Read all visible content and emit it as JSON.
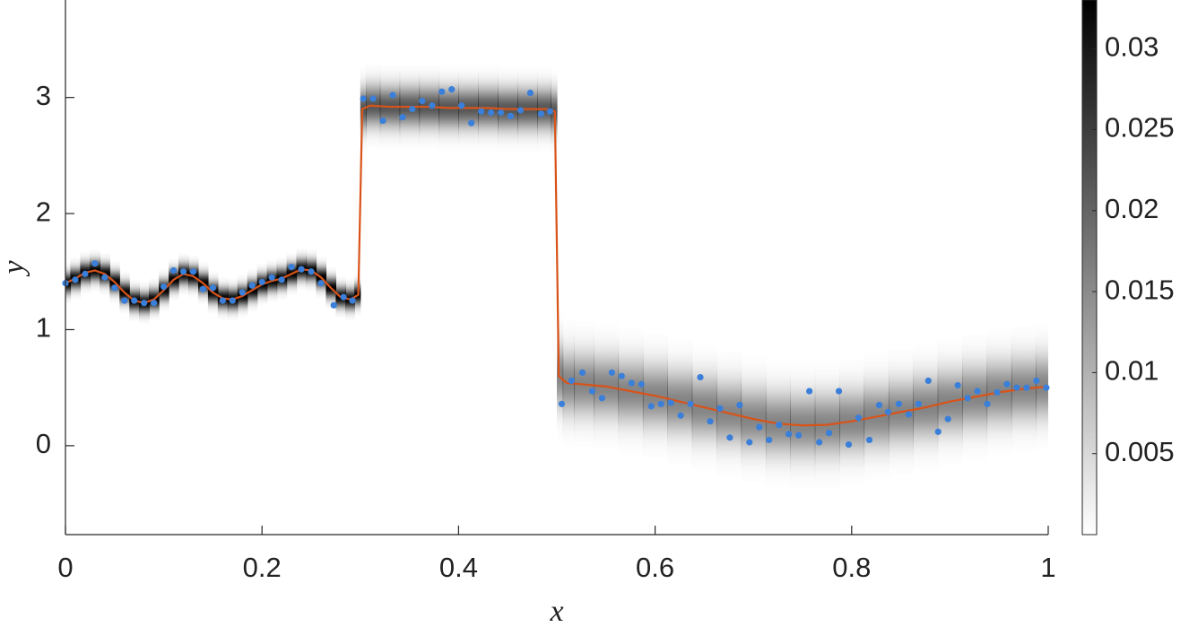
{
  "chart_data": {
    "type": "density",
    "xlabel": "x",
    "ylabel": "y",
    "xlim": [
      0,
      1
    ],
    "ylim": [
      -0.766,
      3.84
    ],
    "xticks": [
      0,
      0.2,
      0.4,
      0.6,
      0.8,
      1
    ],
    "yticks": [
      0,
      1,
      2,
      3
    ],
    "clim": [
      0,
      0.033
    ],
    "cticks": [
      0.005,
      0.01,
      0.015,
      0.02,
      0.025,
      0.03
    ],
    "line": {
      "color": "#d95319",
      "x": [
        0,
        0.01,
        0.02,
        0.03,
        0.04,
        0.05,
        0.06,
        0.07,
        0.08,
        0.09,
        0.1,
        0.11,
        0.12,
        0.13,
        0.14,
        0.15,
        0.16,
        0.17,
        0.18,
        0.19,
        0.2,
        0.21,
        0.22,
        0.23,
        0.24,
        0.25,
        0.26,
        0.27,
        0.28,
        0.29,
        0.298,
        0.302,
        0.31,
        0.33,
        0.35,
        0.37,
        0.39,
        0.41,
        0.43,
        0.45,
        0.47,
        0.49,
        0.498,
        0.502,
        0.51,
        0.525,
        0.55,
        0.575,
        0.6,
        0.625,
        0.65,
        0.675,
        0.7,
        0.725,
        0.75,
        0.775,
        0.8,
        0.825,
        0.85,
        0.875,
        0.9,
        0.925,
        0.95,
        0.975,
        1
      ],
      "y": [
        1.4,
        1.44,
        1.49,
        1.51,
        1.48,
        1.41,
        1.32,
        1.25,
        1.23,
        1.26,
        1.34,
        1.43,
        1.48,
        1.46,
        1.4,
        1.32,
        1.27,
        1.26,
        1.29,
        1.34,
        1.39,
        1.42,
        1.44,
        1.48,
        1.52,
        1.51,
        1.45,
        1.36,
        1.28,
        1.26,
        1.3,
        2.9,
        2.93,
        2.92,
        2.92,
        2.92,
        2.91,
        2.91,
        2.91,
        2.9,
        2.9,
        2.9,
        2.88,
        0.6,
        0.54,
        0.53,
        0.51,
        0.47,
        0.43,
        0.38,
        0.33,
        0.28,
        0.23,
        0.19,
        0.175,
        0.18,
        0.21,
        0.25,
        0.29,
        0.33,
        0.38,
        0.42,
        0.46,
        0.49,
        0.51
      ]
    },
    "density": {
      "peak": [
        0.033,
        0.033,
        0.033,
        0.033,
        0.033,
        0.033,
        0.033,
        0.033,
        0.033,
        0.033,
        0.033,
        0.033,
        0.033,
        0.033,
        0.033,
        0.033,
        0.033,
        0.033,
        0.033,
        0.033,
        0.033,
        0.033,
        0.033,
        0.033,
        0.033,
        0.033,
        0.033,
        0.033,
        0.033,
        0.033,
        0.033,
        0.022,
        0.022,
        0.022,
        0.022,
        0.022,
        0.022,
        0.022,
        0.022,
        0.022,
        0.022,
        0.022,
        0.022,
        0.016,
        0.016,
        0.016,
        0.016,
        0.016,
        0.016,
        0.016,
        0.016,
        0.016,
        0.016,
        0.016,
        0.016,
        0.016,
        0.016,
        0.016,
        0.016,
        0.016,
        0.016,
        0.016,
        0.016,
        0.016,
        0.016
      ],
      "spread": [
        0.06,
        0.06,
        0.06,
        0.06,
        0.06,
        0.06,
        0.06,
        0.06,
        0.06,
        0.06,
        0.06,
        0.06,
        0.06,
        0.06,
        0.06,
        0.06,
        0.06,
        0.06,
        0.06,
        0.06,
        0.06,
        0.06,
        0.06,
        0.06,
        0.06,
        0.06,
        0.06,
        0.06,
        0.06,
        0.06,
        0.06,
        0.12,
        0.12,
        0.12,
        0.12,
        0.12,
        0.12,
        0.12,
        0.12,
        0.12,
        0.12,
        0.12,
        0.12,
        0.18,
        0.18,
        0.18,
        0.18,
        0.18,
        0.18,
        0.18,
        0.18,
        0.18,
        0.18,
        0.18,
        0.18,
        0.18,
        0.18,
        0.18,
        0.18,
        0.18,
        0.18,
        0.18,
        0.18,
        0.18,
        0.18
      ]
    },
    "points": {
      "color": "#3a7fd9",
      "x": [
        0,
        0.01,
        0.02,
        0.03,
        0.04,
        0.05,
        0.06,
        0.07,
        0.08,
        0.09,
        0.1,
        0.11,
        0.12,
        0.13,
        0.14,
        0.15,
        0.16,
        0.17,
        0.18,
        0.19,
        0.2,
        0.21,
        0.22,
        0.23,
        0.24,
        0.25,
        0.26,
        0.273,
        0.283,
        0.292,
        0.303,
        0.313,
        0.323,
        0.333,
        0.343,
        0.353,
        0.363,
        0.373,
        0.383,
        0.393,
        0.403,
        0.413,
        0.423,
        0.433,
        0.443,
        0.453,
        0.463,
        0.473,
        0.484,
        0.493,
        0.505,
        0.515,
        0.526,
        0.536,
        0.546,
        0.556,
        0.566,
        0.576,
        0.586,
        0.596,
        0.606,
        0.616,
        0.626,
        0.636,
        0.646,
        0.656,
        0.666,
        0.676,
        0.686,
        0.696,
        0.706,
        0.716,
        0.726,
        0.736,
        0.746,
        0.757,
        0.767,
        0.777,
        0.787,
        0.797,
        0.807,
        0.818,
        0.828,
        0.837,
        0.848,
        0.858,
        0.868,
        0.878,
        0.888,
        0.898,
        0.908,
        0.918,
        0.928,
        0.938,
        0.948,
        0.958,
        0.968,
        0.978,
        0.988,
        0.998
      ],
      "y": [
        1.4,
        1.43,
        1.48,
        1.57,
        1.45,
        1.36,
        1.25,
        1.25,
        1.23,
        1.23,
        1.37,
        1.51,
        1.5,
        1.5,
        1.35,
        1.36,
        1.25,
        1.25,
        1.32,
        1.38,
        1.41,
        1.45,
        1.43,
        1.54,
        1.52,
        1.5,
        1.4,
        1.21,
        1.28,
        1.25,
        2.99,
        2.99,
        2.8,
        3.02,
        2.83,
        2.9,
        2.97,
        2.93,
        3.05,
        3.07,
        2.93,
        2.78,
        2.88,
        2.87,
        2.87,
        2.84,
        2.89,
        3.04,
        2.86,
        2.88,
        0.36,
        0.56,
        0.63,
        0.47,
        0.41,
        0.63,
        0.6,
        0.54,
        0.53,
        0.34,
        0.36,
        0.37,
        0.26,
        0.36,
        0.59,
        0.21,
        0.32,
        0.07,
        0.35,
        0.03,
        0.16,
        0.05,
        0.18,
        0.1,
        0.09,
        0.47,
        0.03,
        0.11,
        0.47,
        0.01,
        0.24,
        0.05,
        0.35,
        0.29,
        0.36,
        0.27,
        0.36,
        0.56,
        0.12,
        0.23,
        0.52,
        0.41,
        0.47,
        0.36,
        0.46,
        0.53,
        0.5,
        0.5,
        0.56,
        0.5
      ]
    }
  }
}
